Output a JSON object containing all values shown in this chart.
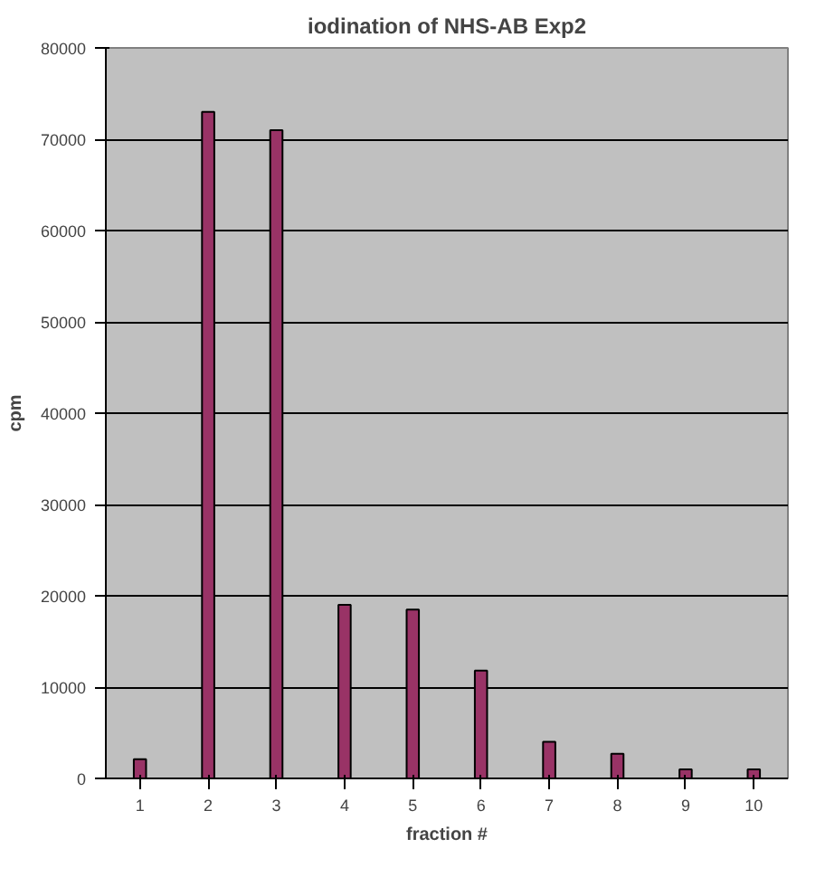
{
  "chart_data": {
    "type": "bar",
    "title": "iodination of NHS-AB Exp2",
    "xlabel": "fraction #",
    "ylabel": "cpm",
    "categories": [
      "1",
      "2",
      "3",
      "4",
      "5",
      "6",
      "7",
      "8",
      "9",
      "10"
    ],
    "values": [
      2100,
      73000,
      71000,
      19000,
      18500,
      11800,
      4000,
      2700,
      1000,
      1000
    ],
    "color": "#993366",
    "ylim": [
      0,
      80000
    ],
    "yticks": [
      0,
      10000,
      20000,
      30000,
      40000,
      50000,
      60000,
      70000,
      80000
    ],
    "grid": "y"
  }
}
